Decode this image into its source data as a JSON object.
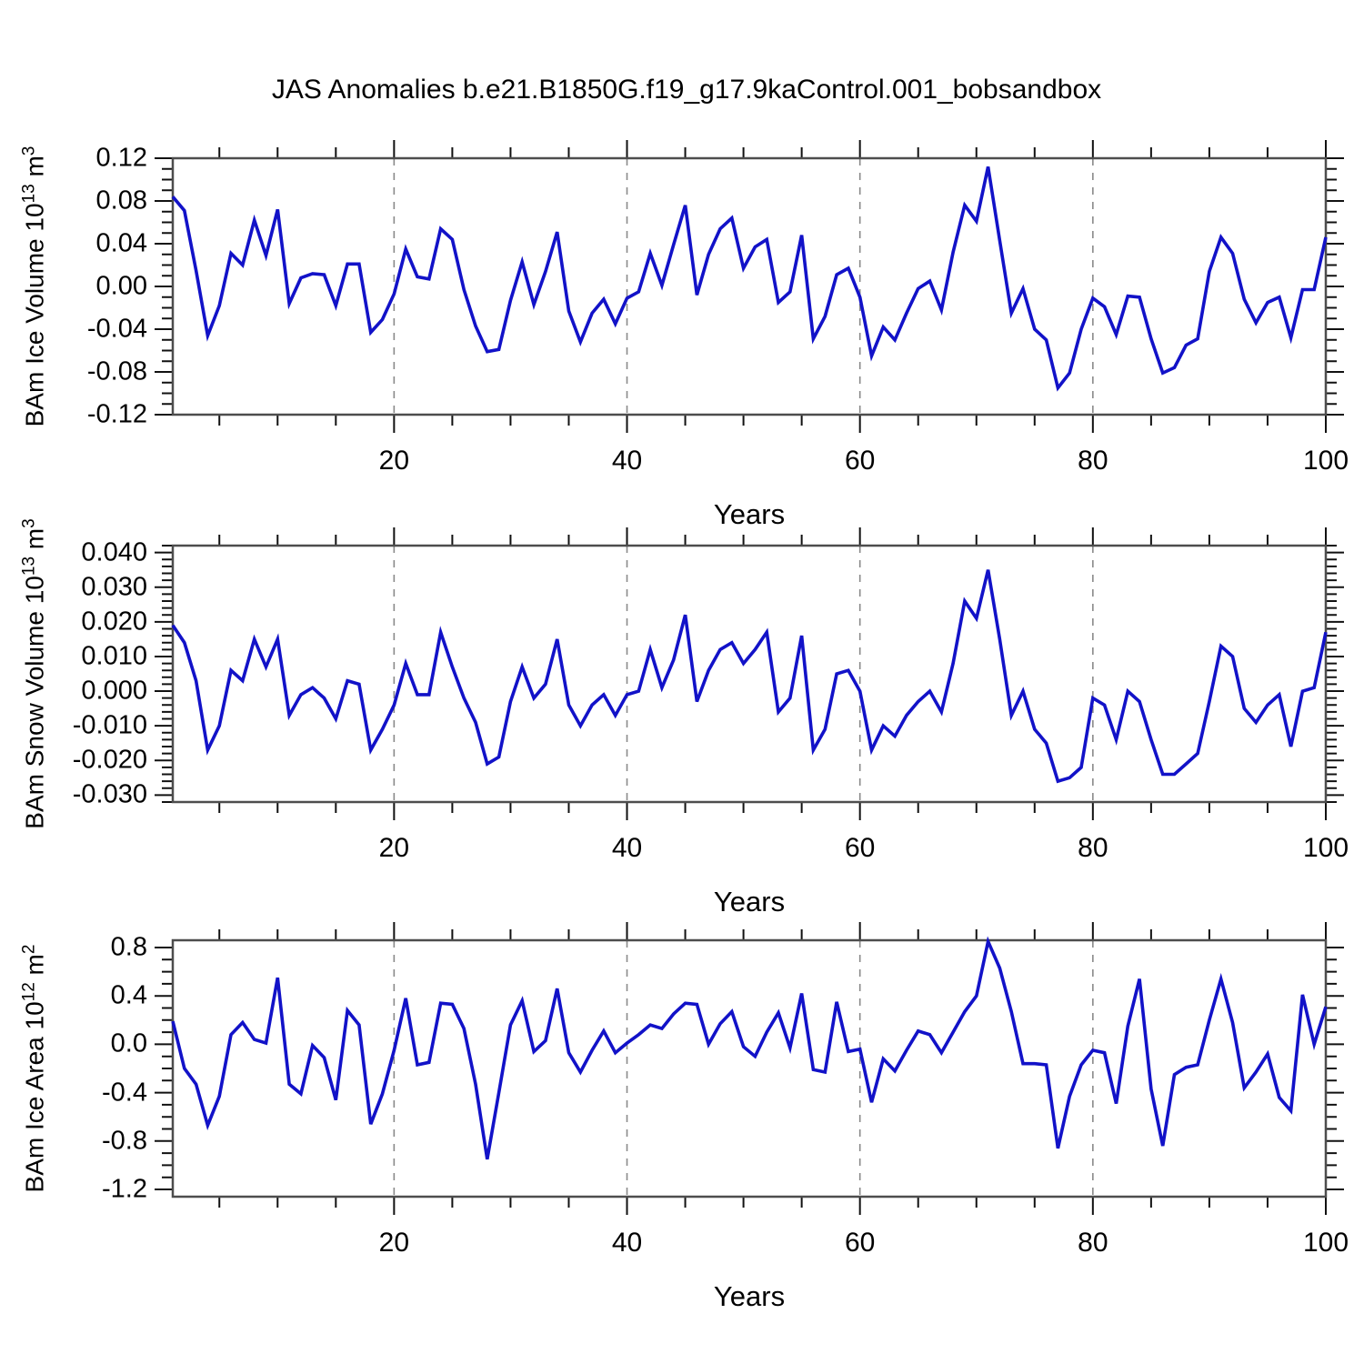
{
  "title": "JAS Anomalies b.e21.B1850G.f19_g17.9kaControl.001_bobsandbox",
  "line_color": "#1212c8",
  "grid_color": "#8a8a8a",
  "frame_color": "#4d4d4d",
  "chart_data": [
    {
      "type": "line",
      "title": "",
      "xlabel": "Years",
      "ylabel": "BAm Ice Volume 10^13 m^3",
      "ylabel_parts": {
        "base": "BAm Ice Volume 10",
        "exp": "13",
        "unit": " m",
        "unit_exp": "3"
      },
      "x_start": 1,
      "x_end": 100,
      "ylim": [
        -0.12,
        0.12
      ],
      "yticks": [
        0.12,
        0.08,
        0.04,
        0.0,
        -0.04,
        -0.08,
        -0.12
      ],
      "ytick_labels": [
        "0.12",
        "0.08",
        "0.04",
        "0.00",
        "-0.04",
        "-0.08",
        "-0.12"
      ],
      "y_minor_step": 0.01,
      "xticks": [
        20,
        40,
        60,
        80,
        100
      ],
      "xtick_labels": [
        "20",
        "40",
        "60",
        "80",
        "100"
      ],
      "x_minor_step": 5,
      "grid_x": [
        20,
        40,
        60,
        80
      ],
      "values": [
        0.084,
        0.071,
        0.015,
        -0.046,
        -0.018,
        0.031,
        0.02,
        0.062,
        0.029,
        0.072,
        -0.016,
        0.008,
        0.012,
        0.011,
        -0.018,
        0.021,
        0.021,
        -0.043,
        -0.031,
        -0.007,
        0.035,
        0.009,
        0.007,
        0.054,
        0.044,
        -0.003,
        -0.037,
        -0.061,
        -0.059,
        -0.013,
        0.023,
        -0.017,
        0.014,
        0.051,
        -0.023,
        -0.052,
        -0.025,
        -0.012,
        -0.035,
        -0.011,
        -0.005,
        0.031,
        0.001,
        0.039,
        0.076,
        -0.008,
        0.03,
        0.054,
        0.064,
        0.017,
        0.037,
        0.044,
        -0.015,
        -0.005,
        0.048,
        -0.049,
        -0.028,
        0.011,
        0.017,
        -0.01,
        -0.065,
        -0.038,
        -0.05,
        -0.025,
        -0.002,
        0.005,
        -0.022,
        0.032,
        0.076,
        0.061,
        0.112,
        0.043,
        -0.025,
        -0.002,
        -0.04,
        -0.05,
        -0.095,
        -0.081,
        -0.04,
        -0.011,
        -0.019,
        -0.045,
        -0.009,
        -0.01,
        -0.049,
        -0.081,
        -0.076,
        -0.055,
        -0.049,
        0.014,
        0.046,
        0.031,
        -0.012,
        -0.034,
        -0.015,
        -0.01,
        -0.048,
        -0.003,
        -0.003,
        0.046
      ]
    },
    {
      "type": "line",
      "title": "",
      "xlabel": "Years",
      "ylabel": "BAm Snow Volume 10^13 m^3",
      "ylabel_parts": {
        "base": "BAm Snow Volume 10",
        "exp": "13",
        "unit": " m",
        "unit_exp": "3"
      },
      "x_start": 1,
      "x_end": 100,
      "ylim": [
        -0.032,
        0.042
      ],
      "yticks": [
        0.04,
        0.03,
        0.02,
        0.01,
        0.0,
        -0.01,
        -0.02,
        -0.03
      ],
      "ytick_labels": [
        "0.040",
        "0.030",
        "0.020",
        "0.010",
        "0.000",
        "-0.010",
        "-0.020",
        "-0.030"
      ],
      "y_minor_step": 0.002,
      "xticks": [
        20,
        40,
        60,
        80,
        100
      ],
      "xtick_labels": [
        "20",
        "40",
        "60",
        "80",
        "100"
      ],
      "x_minor_step": 5,
      "grid_x": [
        20,
        40,
        60,
        80
      ],
      "values": [
        0.019,
        0.014,
        0.003,
        -0.017,
        -0.01,
        0.006,
        0.003,
        0.015,
        0.007,
        0.015,
        -0.007,
        -0.001,
        0.001,
        -0.002,
        -0.008,
        0.003,
        0.002,
        -0.017,
        -0.011,
        -0.004,
        0.008,
        -0.001,
        -0.001,
        0.017,
        0.007,
        -0.002,
        -0.009,
        -0.021,
        -0.019,
        -0.003,
        0.007,
        -0.002,
        0.002,
        0.015,
        -0.004,
        -0.01,
        -0.004,
        -0.001,
        -0.007,
        -0.001,
        0.0,
        0.012,
        0.001,
        0.009,
        0.022,
        -0.003,
        0.006,
        0.012,
        0.014,
        0.008,
        0.012,
        0.017,
        -0.006,
        -0.002,
        0.016,
        -0.017,
        -0.011,
        0.005,
        0.006,
        0.0,
        -0.017,
        -0.01,
        -0.013,
        -0.007,
        -0.003,
        0.0,
        -0.006,
        0.008,
        0.026,
        0.021,
        0.035,
        0.015,
        -0.007,
        0.0,
        -0.011,
        -0.015,
        -0.026,
        -0.025,
        -0.022,
        -0.002,
        -0.004,
        -0.014,
        0.0,
        -0.003,
        -0.014,
        -0.024,
        -0.024,
        -0.021,
        -0.018,
        -0.003,
        0.013,
        0.01,
        -0.005,
        -0.009,
        -0.004,
        -0.001,
        -0.016,
        0.0,
        0.001,
        0.017
      ]
    },
    {
      "type": "line",
      "title": "",
      "xlabel": "Years",
      "ylabel": "BAm Ice Area 10^12 m^2",
      "ylabel_parts": {
        "base": "BAm Ice Area 10",
        "exp": "12",
        "unit": " m",
        "unit_exp": "2"
      },
      "x_start": 1,
      "x_end": 100,
      "ylim": [
        -1.26,
        0.86
      ],
      "yticks": [
        0.8,
        0.4,
        0.0,
        -0.4,
        -0.8,
        -1.2
      ],
      "ytick_labels": [
        "0.8",
        "0.4",
        "0.0",
        "-0.4",
        "-0.8",
        "-1.2"
      ],
      "y_minor_step": 0.1,
      "xticks": [
        20,
        40,
        60,
        80,
        100
      ],
      "xtick_labels": [
        "20",
        "40",
        "60",
        "80",
        "100"
      ],
      "x_minor_step": 5,
      "grid_x": [
        20,
        40,
        60,
        80
      ],
      "values": [
        0.19,
        -0.2,
        -0.33,
        -0.67,
        -0.43,
        0.08,
        0.18,
        0.04,
        0.01,
        0.55,
        -0.33,
        -0.41,
        -0.01,
        -0.11,
        -0.46,
        0.28,
        0.16,
        -0.66,
        -0.41,
        -0.05,
        0.38,
        -0.17,
        -0.15,
        0.34,
        0.33,
        0.13,
        -0.33,
        -0.95,
        -0.4,
        0.16,
        0.36,
        -0.06,
        0.03,
        0.46,
        -0.07,
        -0.23,
        -0.05,
        0.11,
        -0.07,
        0.01,
        0.08,
        0.16,
        0.13,
        0.25,
        0.34,
        0.33,
        0.0,
        0.17,
        0.27,
        -0.02,
        -0.1,
        0.1,
        0.26,
        -0.03,
        0.42,
        -0.21,
        -0.23,
        0.35,
        -0.06,
        -0.04,
        -0.48,
        -0.12,
        -0.22,
        -0.05,
        0.11,
        0.08,
        -0.07,
        0.1,
        0.27,
        0.4,
        0.85,
        0.63,
        0.27,
        -0.16,
        -0.16,
        -0.17,
        -0.86,
        -0.43,
        -0.17,
        -0.05,
        -0.07,
        -0.49,
        0.15,
        0.54,
        -0.37,
        -0.84,
        -0.25,
        -0.19,
        -0.17,
        0.2,
        0.54,
        0.18,
        -0.36,
        -0.23,
        -0.08,
        -0.44,
        -0.55,
        0.41,
        0.0,
        0.31
      ]
    }
  ]
}
